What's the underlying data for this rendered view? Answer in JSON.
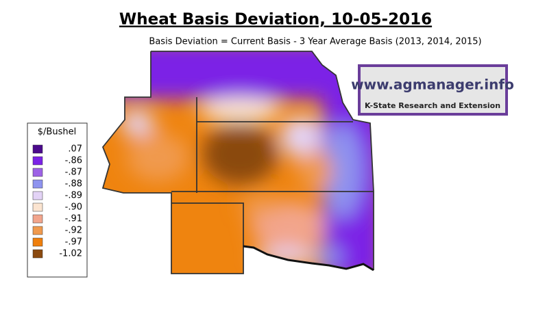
{
  "header": {
    "title": "Wheat Basis Deviation, 10-05-2016",
    "subtitle": "Basis Deviation = Current Basis - 3 Year Average Basis (2013, 2014, 2015)"
  },
  "legend": {
    "title": "$/Bushel",
    "items": [
      {
        "label": ".07",
        "color": "#4b0a8c"
      },
      {
        "label": "-.86",
        "color": "#7b22e6"
      },
      {
        "label": "-.87",
        "color": "#9d62e6"
      },
      {
        "label": "-.88",
        "color": "#8e93ef"
      },
      {
        "label": "-.89",
        "color": "#e3d3f6"
      },
      {
        "label": "-.90",
        "color": "#fbe4d0"
      },
      {
        "label": "-.91",
        "color": "#f2a58c"
      },
      {
        "label": "-.92",
        "color": "#f09a4e"
      },
      {
        "label": "-.97",
        "color": "#ef7f0c"
      },
      {
        "label": "-1.02",
        "color": "#8a4a10"
      }
    ]
  },
  "logo": {
    "url": "www.agmanager.info",
    "org": "K-State Research and Extension"
  }
}
